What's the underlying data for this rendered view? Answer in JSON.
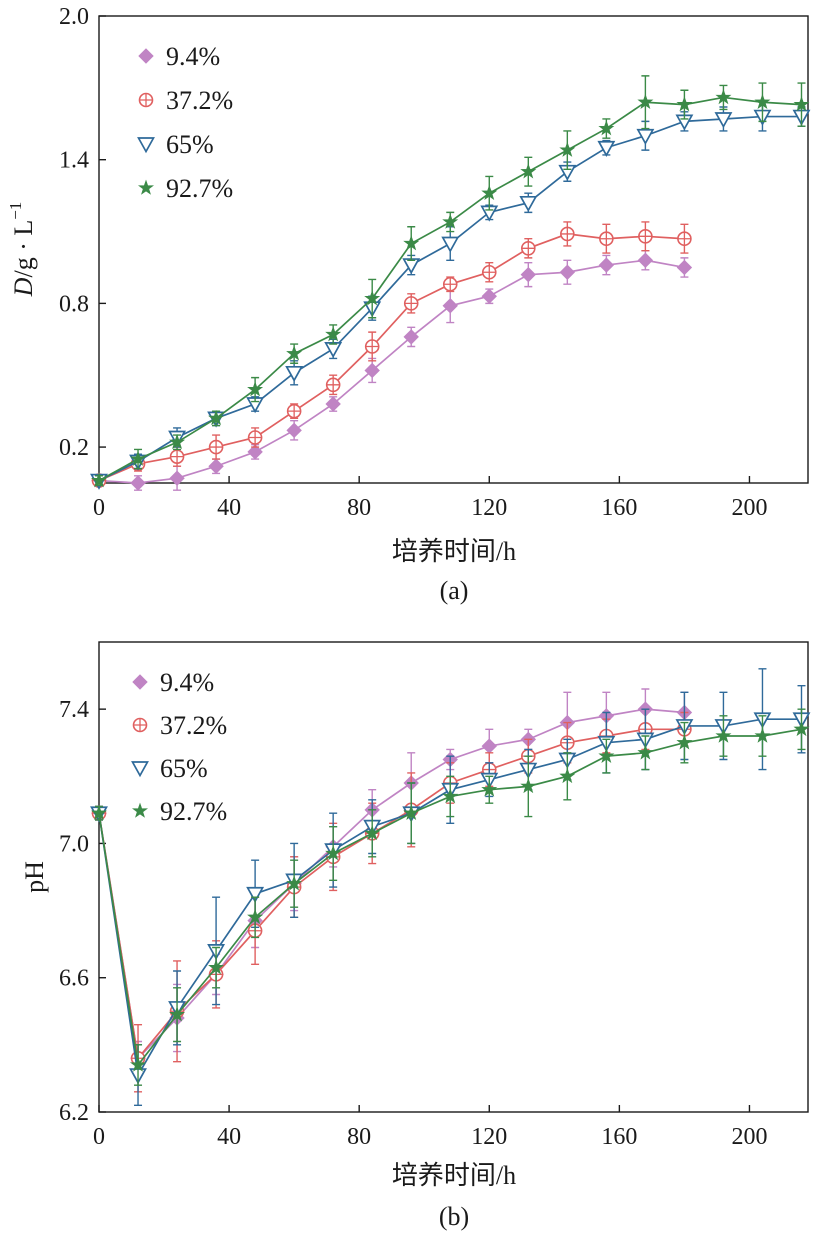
{
  "chart_data": [
    {
      "id": "a",
      "type": "line",
      "caption": "(a)",
      "xlabel": "培养时间/h",
      "ylabel": {
        "italic": "D",
        "rest": "/g · L",
        "sup": "−1"
      },
      "xlim": [
        0,
        218
      ],
      "ylim": [
        0.05,
        2.0
      ],
      "xticks": [
        0,
        40,
        80,
        120,
        160,
        200
      ],
      "yticks": [
        0.2,
        0.8,
        1.4,
        2.0
      ],
      "ytick_labels": [
        "0.2",
        "0.8",
        "1.4",
        "2.0"
      ],
      "legend_position": "top-left",
      "series": [
        {
          "name": "9.4%",
          "marker": "diamond",
          "color": "#c084c4",
          "x": [
            0,
            12,
            24,
            36,
            48,
            60,
            72,
            84,
            96,
            108,
            120,
            132,
            144,
            156,
            168,
            180
          ],
          "y": [
            0.06,
            0.05,
            0.07,
            0.12,
            0.18,
            0.27,
            0.38,
            0.52,
            0.66,
            0.79,
            0.83,
            0.92,
            0.93,
            0.96,
            0.98,
            0.95
          ],
          "err": [
            0.02,
            0.03,
            0.05,
            0.03,
            0.03,
            0.04,
            0.03,
            0.05,
            0.04,
            0.07,
            0.03,
            0.05,
            0.05,
            0.04,
            0.04,
            0.04
          ]
        },
        {
          "name": "37.2%",
          "marker": "circle-plus",
          "color": "#e06060",
          "x": [
            0,
            12,
            24,
            36,
            48,
            60,
            72,
            84,
            96,
            108,
            120,
            132,
            144,
            156,
            168,
            180
          ],
          "y": [
            0.06,
            0.13,
            0.16,
            0.2,
            0.24,
            0.35,
            0.46,
            0.62,
            0.8,
            0.88,
            0.93,
            1.03,
            1.09,
            1.07,
            1.08,
            1.07
          ],
          "err": [
            0.02,
            0.03,
            0.04,
            0.05,
            0.04,
            0.03,
            0.04,
            0.06,
            0.04,
            0.03,
            0.04,
            0.04,
            0.05,
            0.06,
            0.06,
            0.06
          ]
        },
        {
          "name": "65%",
          "marker": "triangle-down",
          "color": "#2f6a9a",
          "x": [
            0,
            12,
            24,
            36,
            48,
            60,
            72,
            84,
            96,
            108,
            120,
            132,
            144,
            156,
            168,
            180,
            192,
            204,
            216
          ],
          "y": [
            0.06,
            0.14,
            0.24,
            0.32,
            0.38,
            0.51,
            0.61,
            0.78,
            0.96,
            1.05,
            1.18,
            1.22,
            1.35,
            1.45,
            1.5,
            1.56,
            1.57,
            1.58,
            1.58
          ],
          "err": [
            0.02,
            0.03,
            0.04,
            0.03,
            0.03,
            0.05,
            0.04,
            0.05,
            0.04,
            0.07,
            0.03,
            0.04,
            0.04,
            0.03,
            0.06,
            0.04,
            0.05,
            0.06,
            0.04
          ]
        },
        {
          "name": "92.7%",
          "marker": "star",
          "color": "#3b8a47",
          "x": [
            0,
            12,
            24,
            36,
            48,
            60,
            72,
            84,
            96,
            108,
            120,
            132,
            144,
            156,
            168,
            180,
            192,
            204,
            216
          ],
          "y": [
            0.06,
            0.15,
            0.22,
            0.32,
            0.44,
            0.59,
            0.67,
            0.82,
            1.05,
            1.14,
            1.26,
            1.35,
            1.44,
            1.53,
            1.64,
            1.63,
            1.66,
            1.64,
            1.63
          ],
          "err": [
            0.02,
            0.04,
            0.03,
            0.03,
            0.05,
            0.04,
            0.04,
            0.08,
            0.07,
            0.04,
            0.07,
            0.06,
            0.08,
            0.04,
            0.11,
            0.06,
            0.05,
            0.08,
            0.09
          ]
        }
      ]
    },
    {
      "id": "b",
      "type": "line",
      "caption": "(b)",
      "xlabel": "培养时间/h",
      "ylabel": {
        "italic": "",
        "rest": "pH",
        "sup": ""
      },
      "xlim": [
        0,
        218
      ],
      "ylim": [
        6.2,
        7.6
      ],
      "xticks": [
        0,
        40,
        80,
        120,
        160,
        200
      ],
      "yticks": [
        6.2,
        6.6,
        7.0,
        7.4
      ],
      "ytick_labels": [
        "6.2",
        "6.6",
        "7.0",
        "7.4"
      ],
      "legend_position": "top-left",
      "series": [
        {
          "name": "9.4%",
          "marker": "diamond",
          "color": "#c084c4",
          "x": [
            0,
            12,
            24,
            36,
            48,
            60,
            72,
            84,
            96,
            108,
            120,
            132,
            144,
            156,
            168,
            180
          ],
          "y": [
            7.09,
            6.36,
            6.48,
            6.61,
            6.77,
            6.88,
            6.99,
            7.1,
            7.18,
            7.25,
            7.29,
            7.31,
            7.36,
            7.38,
            7.4,
            7.39
          ],
          "err": [
            0.02,
            0.05,
            0.1,
            0.06,
            0.08,
            0.08,
            0.06,
            0.06,
            0.09,
            0.03,
            0.05,
            0.03,
            0.09,
            0.07,
            0.06,
            0.06
          ]
        },
        {
          "name": "37.2%",
          "marker": "circle-plus",
          "color": "#e06060",
          "x": [
            0,
            12,
            24,
            36,
            48,
            60,
            72,
            84,
            96,
            108,
            120,
            132,
            144,
            156,
            168,
            180
          ],
          "y": [
            7.09,
            6.36,
            6.5,
            6.61,
            6.74,
            6.87,
            6.96,
            7.03,
            7.1,
            7.18,
            7.22,
            7.26,
            7.3,
            7.32,
            7.34,
            7.34
          ],
          "err": [
            0.02,
            0.1,
            0.15,
            0.1,
            0.1,
            0.09,
            0.1,
            0.09,
            0.11,
            0.06,
            0.05,
            0.05,
            0.06,
            0.05,
            0.06,
            0.05
          ]
        },
        {
          "name": "65%",
          "marker": "triangle-down",
          "color": "#2f6a9a",
          "x": [
            0,
            12,
            24,
            36,
            48,
            60,
            72,
            84,
            96,
            108,
            120,
            132,
            144,
            156,
            168,
            180,
            192,
            204,
            216
          ],
          "y": [
            7.09,
            6.31,
            6.51,
            6.68,
            6.85,
            6.89,
            6.98,
            7.05,
            7.09,
            7.16,
            7.19,
            7.22,
            7.25,
            7.3,
            7.31,
            7.35,
            7.35,
            7.37,
            7.37
          ],
          "err": [
            0.02,
            0.09,
            0.11,
            0.16,
            0.1,
            0.11,
            0.11,
            0.08,
            0.09,
            0.1,
            0.05,
            0.06,
            0.06,
            0.09,
            0.09,
            0.1,
            0.1,
            0.15,
            0.1
          ]
        },
        {
          "name": "92.7%",
          "marker": "star",
          "color": "#3b8a47",
          "x": [
            0,
            12,
            24,
            36,
            48,
            60,
            72,
            84,
            96,
            108,
            120,
            132,
            144,
            156,
            168,
            180,
            192,
            204,
            216
          ],
          "y": [
            7.09,
            6.34,
            6.49,
            6.63,
            6.78,
            6.88,
            6.97,
            7.03,
            7.09,
            7.14,
            7.16,
            7.17,
            7.2,
            7.26,
            7.27,
            7.3,
            7.32,
            7.32,
            7.34
          ],
          "err": [
            0.02,
            0.06,
            0.08,
            0.06,
            0.06,
            0.07,
            0.08,
            0.07,
            0.09,
            0.06,
            0.04,
            0.09,
            0.07,
            0.05,
            0.05,
            0.06,
            0.06,
            0.06,
            0.06
          ]
        }
      ]
    }
  ]
}
